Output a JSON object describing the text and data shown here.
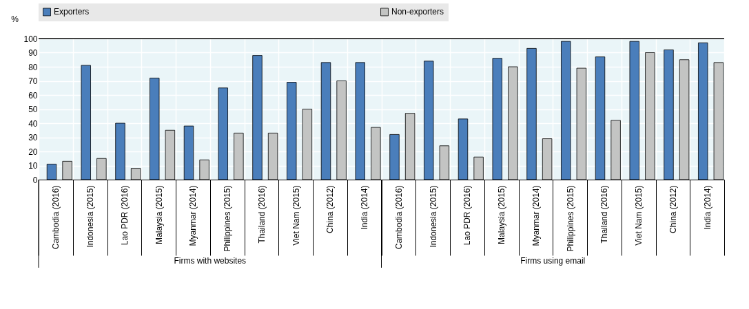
{
  "chart_data": {
    "type": "bar",
    "ylabel": "%",
    "categories": [
      "Cambodia (2016)",
      "Indonesia (2015)",
      "Lao PDR (2016)",
      "Malaysia (2015)",
      "Myanmar (2014)",
      "Philippines (2015)",
      "Thailand (2016)",
      "Viet Nam (2015)",
      "China (2012)",
      "India (2014)",
      "Cambodia (2016)",
      "Indonesia (2015)",
      "Lao PDR (2016)",
      "Malaysia (2015)",
      "Myanmar (2014)",
      "Philippines (2015)",
      "Thailand (2016)",
      "Viet Nam (2015)",
      "China (2012)",
      "India (2014)"
    ],
    "series": [
      {
        "name": "Exporters",
        "color": "#4a7ebb",
        "values": [
          11,
          81,
          40,
          72,
          38,
          65,
          88,
          69,
          83,
          83,
          32,
          84,
          43,
          86,
          93,
          98,
          87,
          98,
          92,
          97
        ]
      },
      {
        "name": "Non-exporters",
        "color": "#c3c4c3",
        "values": [
          13,
          15,
          8,
          35,
          14,
          33,
          33,
          50,
          70,
          37,
          47,
          24,
          16,
          80,
          29,
          79,
          42,
          90,
          85,
          83
        ]
      }
    ],
    "annotations": [
      "Firms with websites",
      "Firms using email"
    ],
    "ylim": [
      0,
      100
    ],
    "yticks": [
      0,
      10,
      20,
      30,
      40,
      50,
      60,
      70,
      80,
      90,
      100
    ],
    "grid": true,
    "legend": "top"
  }
}
